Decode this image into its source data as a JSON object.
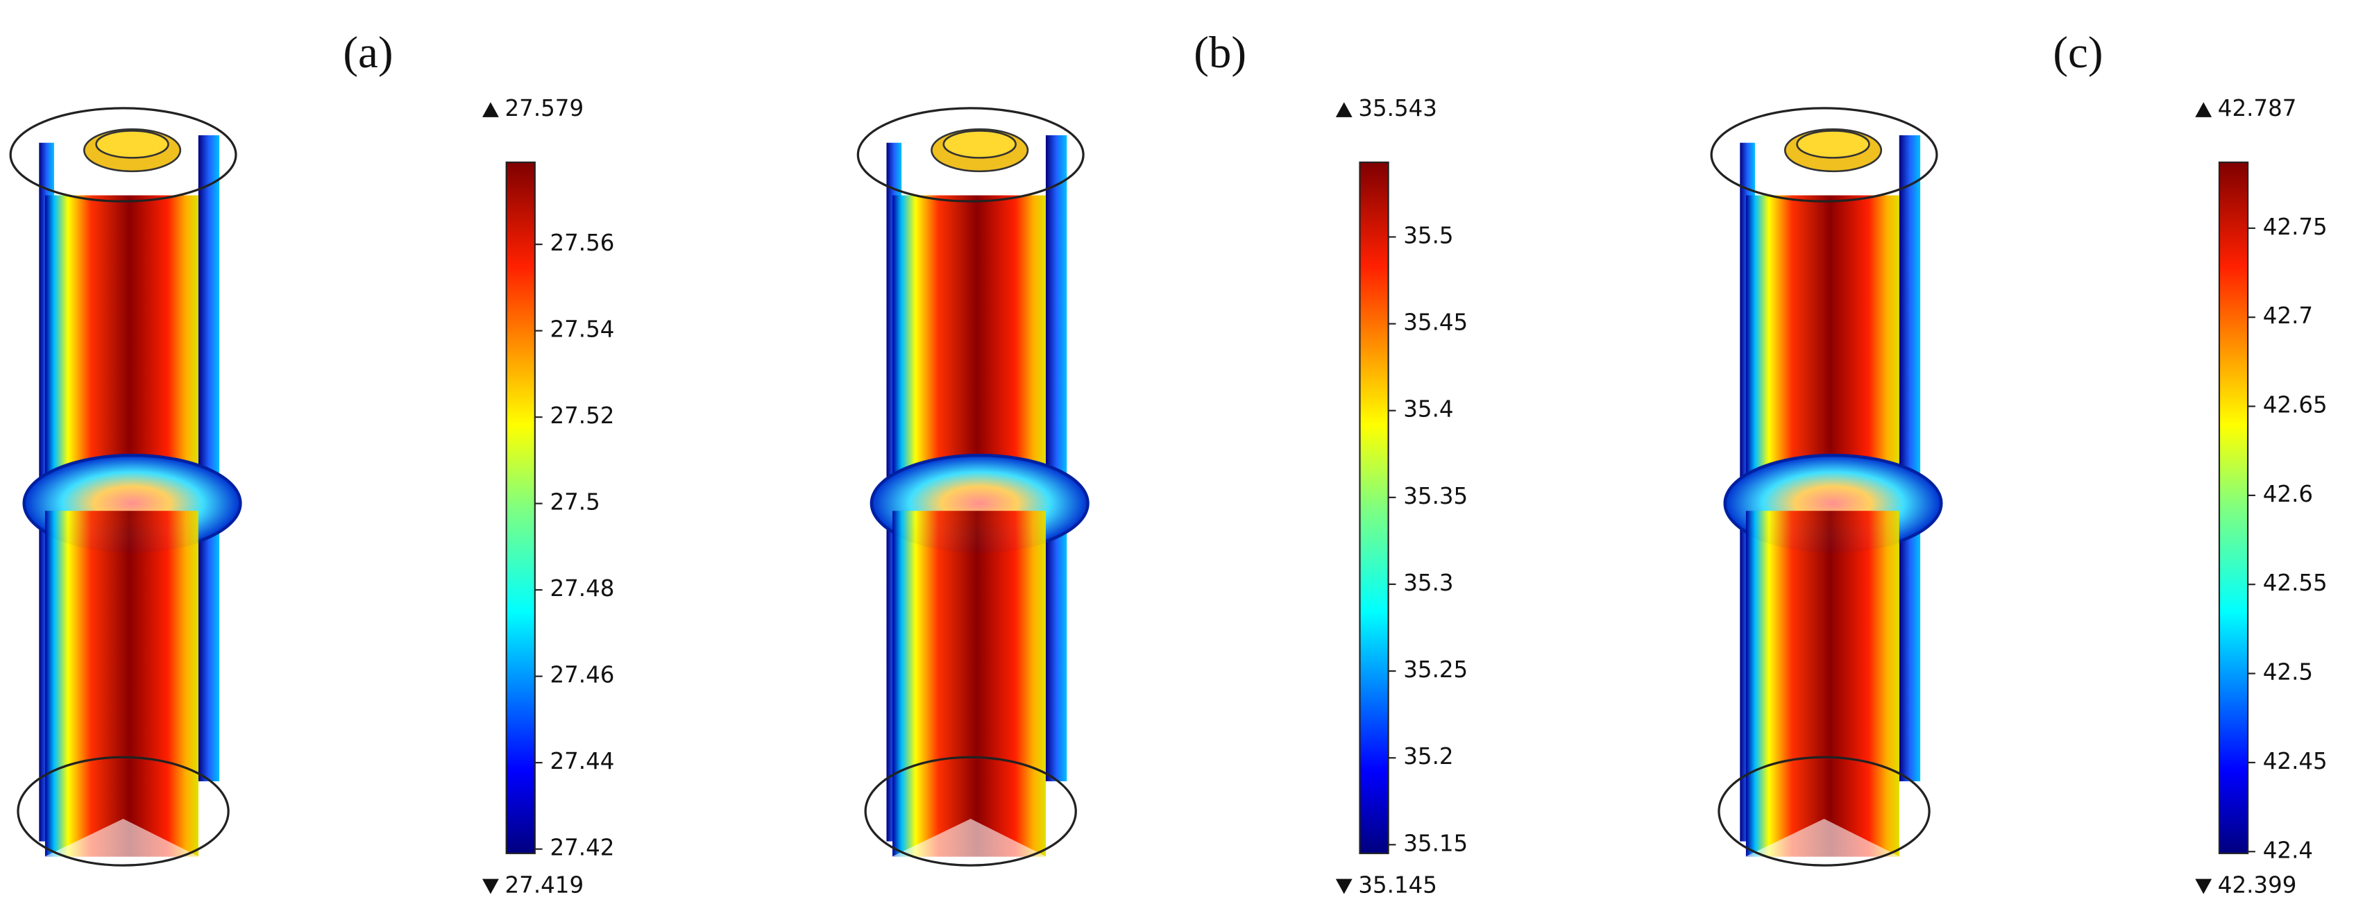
{
  "panels": [
    {
      "label": "(a)",
      "max": 27.579,
      "min": 27.419,
      "ticks": [
        27.42,
        27.44,
        27.46,
        27.48,
        27.5,
        27.52,
        27.54,
        27.56
      ]
    },
    {
      "label": "(b)",
      "max": 35.543,
      "min": 35.145,
      "ticks": [
        35.15,
        35.2,
        35.25,
        35.3,
        35.35,
        35.4,
        35.45,
        35.5
      ]
    },
    {
      "label": "(c)",
      "max": 42.787,
      "min": 42.399,
      "ticks": [
        42.4,
        42.45,
        42.5,
        42.55,
        42.6,
        42.65,
        42.7,
        42.75
      ]
    }
  ]
}
